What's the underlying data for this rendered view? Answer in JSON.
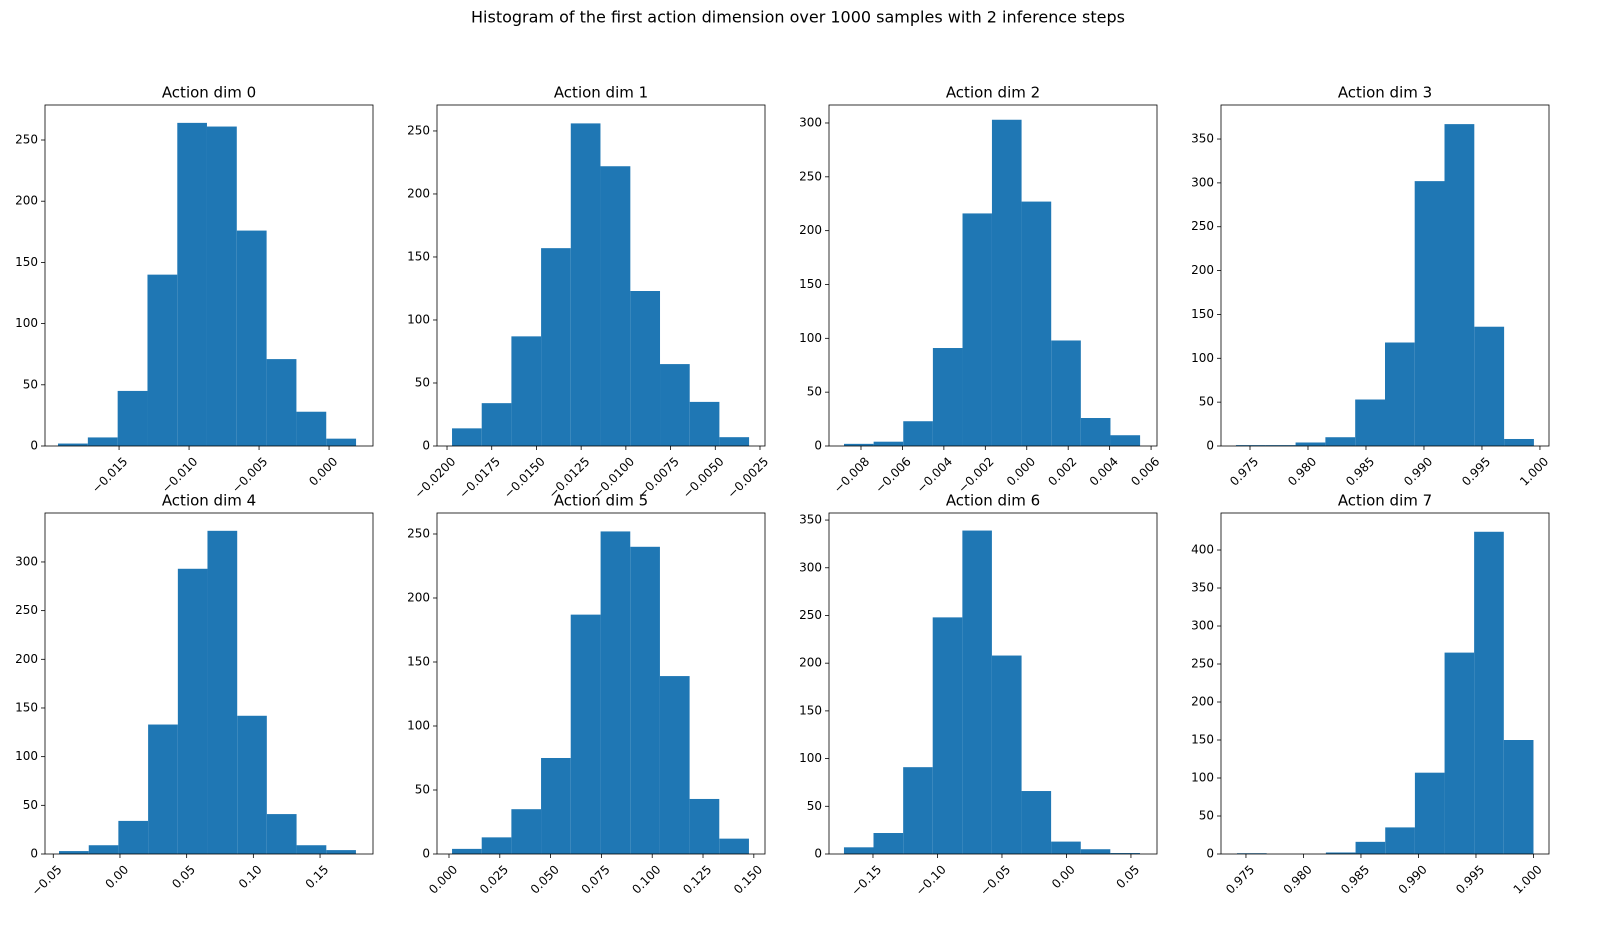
{
  "title": "Histogram of the first action dimension over 1000 samples with 2 inference steps",
  "chart_data": [
    {
      "type": "histogram",
      "title": "Action dim 0",
      "color": "#1f77b4",
      "bins": [
        -0.01936,
        -0.01723,
        -0.0151,
        -0.01297,
        -0.01084,
        -0.00872,
        -0.00659,
        -0.00446,
        -0.00233,
        -0.0002,
        0.00193
      ],
      "values": [
        2,
        7,
        45,
        140,
        264,
        261,
        176,
        71,
        28,
        6
      ],
      "xlim": [
        -0.02029,
        0.00314
      ],
      "ylim": [
        0,
        278.6
      ],
      "xticks": [
        {
          "value": -0.015,
          "label": "−0.015"
        },
        {
          "value": -0.01,
          "label": "−0.010"
        },
        {
          "value": -0.005,
          "label": "−0.005"
        },
        {
          "value": 0,
          "label": "0.000"
        }
      ],
      "yticks": [
        0,
        50,
        100,
        150,
        200,
        250
      ]
    },
    {
      "type": "histogram",
      "title": "Action dim 1",
      "color": "#1f77b4",
      "bins": [
        -0.01972,
        -0.01806,
        -0.0164,
        -0.01474,
        -0.01308,
        -0.01142,
        -0.00975,
        -0.00809,
        -0.00643,
        -0.00477,
        -0.00311
      ],
      "values": [
        14,
        34,
        87,
        157,
        256,
        222,
        123,
        65,
        35,
        7
      ],
      "xlim": [
        -0.02056,
        -0.00222
      ],
      "ylim": [
        0,
        270.6
      ],
      "xticks": [
        {
          "value": -0.02,
          "label": "−0.0200"
        },
        {
          "value": -0.0175,
          "label": "−0.0175"
        },
        {
          "value": -0.015,
          "label": "−0.0150"
        },
        {
          "value": -0.0125,
          "label": "−0.0125"
        },
        {
          "value": -0.01,
          "label": "−0.0100"
        },
        {
          "value": -0.0075,
          "label": "−0.0075"
        },
        {
          "value": -0.005,
          "label": "−0.0050"
        },
        {
          "value": -0.0025,
          "label": "−0.0025"
        }
      ],
      "yticks": [
        0,
        50,
        100,
        150,
        200,
        250
      ]
    },
    {
      "type": "histogram",
      "title": "Action dim 2",
      "color": "#1f77b4",
      "bins": [
        -0.00882,
        -0.00739,
        -0.00596,
        -0.00453,
        -0.0031,
        -0.00168,
        -0.00025,
        0.00118,
        0.00261,
        0.00404,
        0.00547
      ],
      "values": [
        2,
        4,
        23,
        91,
        216,
        303,
        227,
        98,
        26,
        10
      ],
      "xlim": [
        -0.009544,
        0.006286
      ],
      "ylim": [
        0,
        316.7
      ],
      "xticks": [
        {
          "value": -0.008,
          "label": "−0.008"
        },
        {
          "value": -0.006,
          "label": "−0.006"
        },
        {
          "value": -0.004,
          "label": "−0.004"
        },
        {
          "value": -0.002,
          "label": "−0.002"
        },
        {
          "value": 0,
          "label": "0.000"
        },
        {
          "value": 0.002,
          "label": "0.002"
        },
        {
          "value": 0.004,
          "label": "0.004"
        },
        {
          "value": 0.006,
          "label": "0.006"
        }
      ],
      "yticks": [
        0,
        50,
        100,
        150,
        200,
        250,
        300
      ]
    },
    {
      "type": "histogram",
      "title": "Action dim 3",
      "color": "#1f77b4",
      "bins": [
        0.97379,
        0.97636,
        0.97893,
        0.9815,
        0.98407,
        0.98664,
        0.9892,
        0.99177,
        0.99434,
        0.99691,
        0.99948
      ],
      "values": [
        1,
        1,
        4,
        10,
        53,
        118,
        302,
        367,
        136,
        8
      ],
      "xlim": [
        0.9725,
        1.00078
      ],
      "ylim": [
        0,
        388.8
      ],
      "xticks": [
        {
          "value": 0.975,
          "label": "0.975"
        },
        {
          "value": 0.98,
          "label": "0.980"
        },
        {
          "value": 0.985,
          "label": "0.985"
        },
        {
          "value": 0.99,
          "label": "0.990"
        },
        {
          "value": 0.995,
          "label": "0.995"
        },
        {
          "value": 1,
          "label": "1.000"
        }
      ],
      "yticks": [
        0,
        50,
        100,
        150,
        200,
        250,
        300,
        350
      ]
    },
    {
      "type": "histogram",
      "title": "Action dim 4",
      "color": "#1f77b4",
      "bins": [
        -0.0457,
        -0.0234,
        -0.0012,
        0.0211,
        0.0434,
        0.0656,
        0.0879,
        0.1101,
        0.1324,
        0.1547,
        0.1769
      ],
      "values": [
        3,
        9,
        34,
        133,
        293,
        332,
        142,
        41,
        9,
        4
      ],
      "xlim": [
        -0.0562,
        0.1897
      ],
      "ylim": [
        0,
        350.3
      ],
      "xticks": [
        {
          "value": -0.05,
          "label": "−0.05"
        },
        {
          "value": 0,
          "label": "0.00"
        },
        {
          "value": 0.05,
          "label": "0.05"
        },
        {
          "value": 0.1,
          "label": "0.10"
        },
        {
          "value": 0.15,
          "label": "0.15"
        }
      ],
      "yticks": [
        0,
        50,
        100,
        150,
        200,
        250,
        300
      ]
    },
    {
      "type": "histogram",
      "title": "Action dim 5",
      "color": "#1f77b4",
      "bins": [
        0.0015,
        0.0161,
        0.0307,
        0.0453,
        0.0599,
        0.0746,
        0.0892,
        0.1038,
        0.1184,
        0.133,
        0.1476
      ],
      "values": [
        4,
        13,
        35,
        75,
        187,
        252,
        240,
        139,
        43,
        12
      ],
      "xlim": [
        -0.0059,
        0.1555
      ],
      "ylim": [
        0,
        266.4
      ],
      "xticks": [
        {
          "value": 0,
          "label": "0.000"
        },
        {
          "value": 0.025,
          "label": "0.025"
        },
        {
          "value": 0.05,
          "label": "0.050"
        },
        {
          "value": 0.075,
          "label": "0.075"
        },
        {
          "value": 0.1,
          "label": "0.100"
        },
        {
          "value": 0.125,
          "label": "0.125"
        },
        {
          "value": 0.15,
          "label": "0.150"
        }
      ],
      "yticks": [
        0,
        50,
        100,
        150,
        200,
        250
      ]
    },
    {
      "type": "histogram",
      "title": "Action dim 6",
      "color": "#1f77b4",
      "bins": [
        -0.1725,
        -0.1496,
        -0.1266,
        -0.1037,
        -0.0807,
        -0.0578,
        -0.0348,
        -0.0119,
        0.0111,
        0.034,
        0.057
      ],
      "values": [
        7,
        22,
        91,
        248,
        339,
        208,
        66,
        13,
        5,
        1
      ],
      "xlim": [
        -0.1841,
        0.0702
      ],
      "ylim": [
        0,
        357.4
      ],
      "xticks": [
        {
          "value": -0.15,
          "label": "−0.15"
        },
        {
          "value": -0.1,
          "label": "−0.10"
        },
        {
          "value": -0.05,
          "label": "−0.05"
        },
        {
          "value": 0,
          "label": "0.00"
        },
        {
          "value": 0.05,
          "label": "0.05"
        }
      ],
      "yticks": [
        0,
        50,
        100,
        150,
        200,
        250,
        300,
        350
      ]
    },
    {
      "type": "histogram",
      "title": "Action dim 7",
      "color": "#1f77b4",
      "bins": [
        0.97422,
        0.9768,
        0.97938,
        0.98195,
        0.98453,
        0.98711,
        0.98969,
        0.99227,
        0.99484,
        0.99742,
        1.0
      ],
      "values": [
        1,
        0,
        0,
        2,
        16,
        35,
        107,
        265,
        424,
        150
      ],
      "xlim": [
        0.97283,
        1.00135
      ],
      "ylim": [
        0,
        448.7
      ],
      "xticks": [
        {
          "value": 0.975,
          "label": "0.975"
        },
        {
          "value": 0.98,
          "label": "0.980"
        },
        {
          "value": 0.985,
          "label": "0.985"
        },
        {
          "value": 0.99,
          "label": "0.990"
        },
        {
          "value": 0.995,
          "label": "0.995"
        },
        {
          "value": 1,
          "label": "1.000"
        }
      ],
      "yticks": [
        0,
        50,
        100,
        150,
        200,
        250,
        300,
        350,
        400
      ]
    }
  ]
}
